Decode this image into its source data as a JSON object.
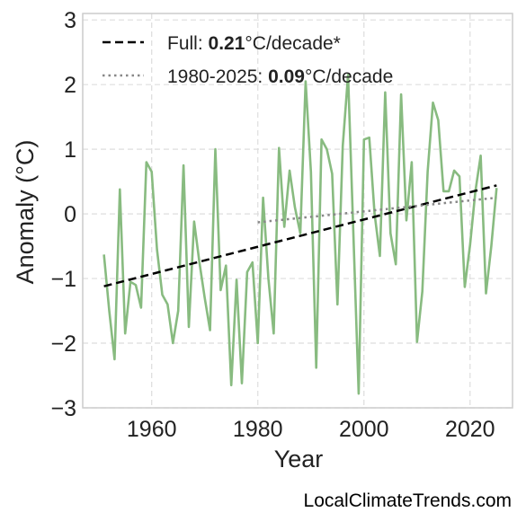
{
  "chart_data": {
    "type": "line",
    "xlabel": "Year",
    "ylabel": "Anomaly (°C)",
    "xlim": [
      1947,
      2028
    ],
    "ylim": [
      -3,
      3.1
    ],
    "x_ticks": [
      1960,
      1980,
      2000,
      2020
    ],
    "y_ticks": [
      -3,
      -2,
      -1,
      0,
      1,
      2,
      3
    ],
    "y_tick_labels": [
      "−3",
      "−2",
      "−1",
      "0",
      "1",
      "2",
      "3"
    ],
    "grid": true,
    "legend_position": "top-left",
    "series": [
      {
        "kind": "annual-anomaly",
        "color": "#88bb80",
        "x": [
          1951,
          1952,
          1953,
          1954,
          1955,
          1956,
          1957,
          1958,
          1959,
          1960,
          1961,
          1962,
          1963,
          1964,
          1965,
          1966,
          1967,
          1968,
          1969,
          1970,
          1971,
          1972,
          1973,
          1974,
          1975,
          1976,
          1977,
          1978,
          1979,
          1980,
          1981,
          1982,
          1983,
          1984,
          1985,
          1986,
          1987,
          1988,
          1989,
          1990,
          1991,
          1992,
          1993,
          1994,
          1995,
          1996,
          1997,
          1998,
          1999,
          2000,
          2001,
          2002,
          2003,
          2004,
          2005,
          2006,
          2007,
          2008,
          2009,
          2010,
          2011,
          2012,
          2013,
          2014,
          2015,
          2016,
          2017,
          2018,
          2019,
          2020,
          2021,
          2022,
          2023,
          2024,
          2025
        ],
        "values": [
          -0.63,
          -1.5,
          -2.25,
          0.38,
          -1.85,
          -1.05,
          -1.1,
          -1.45,
          0.8,
          0.65,
          -0.55,
          -1.25,
          -1.4,
          -2.0,
          -1.5,
          0.75,
          -1.75,
          -0.12,
          -0.75,
          -1.3,
          -1.8,
          1.0,
          -1.18,
          -0.8,
          -2.65,
          -1.02,
          -2.62,
          -0.9,
          -0.75,
          -2.0,
          0.25,
          -1.0,
          -1.85,
          1.02,
          -0.2,
          0.67,
          0.1,
          -0.3,
          2.05,
          0.65,
          -2.38,
          1.15,
          1.0,
          0.62,
          -1.4,
          1.05,
          2.15,
          -0.3,
          -2.78,
          1.15,
          1.18,
          0.0,
          -0.65,
          1.88,
          -0.3,
          -0.78,
          1.85,
          -0.1,
          0.8,
          -1.98,
          -1.2,
          0.65,
          1.72,
          1.45,
          0.35,
          0.35,
          0.67,
          0.58,
          -1.13,
          -0.48,
          0.35,
          0.9,
          -1.23,
          -0.5,
          0.4
        ]
      },
      {
        "kind": "trend-full",
        "color": "#000000",
        "style": "dashed",
        "x": [
          1951,
          2025
        ],
        "values": [
          -1.12,
          0.44
        ],
        "legend_prefix": "Full: ",
        "legend_value": "0.21",
        "legend_suffix": "°C/decade*"
      },
      {
        "kind": "trend-recent",
        "color": "#888888",
        "style": "dotted",
        "x": [
          1980,
          2025
        ],
        "values": [
          -0.13,
          0.25
        ],
        "legend_prefix": "1980-2025: ",
        "legend_value": "0.09",
        "legend_suffix": "°C/decade"
      }
    ]
  },
  "credit": "LocalClimateTrends.com"
}
